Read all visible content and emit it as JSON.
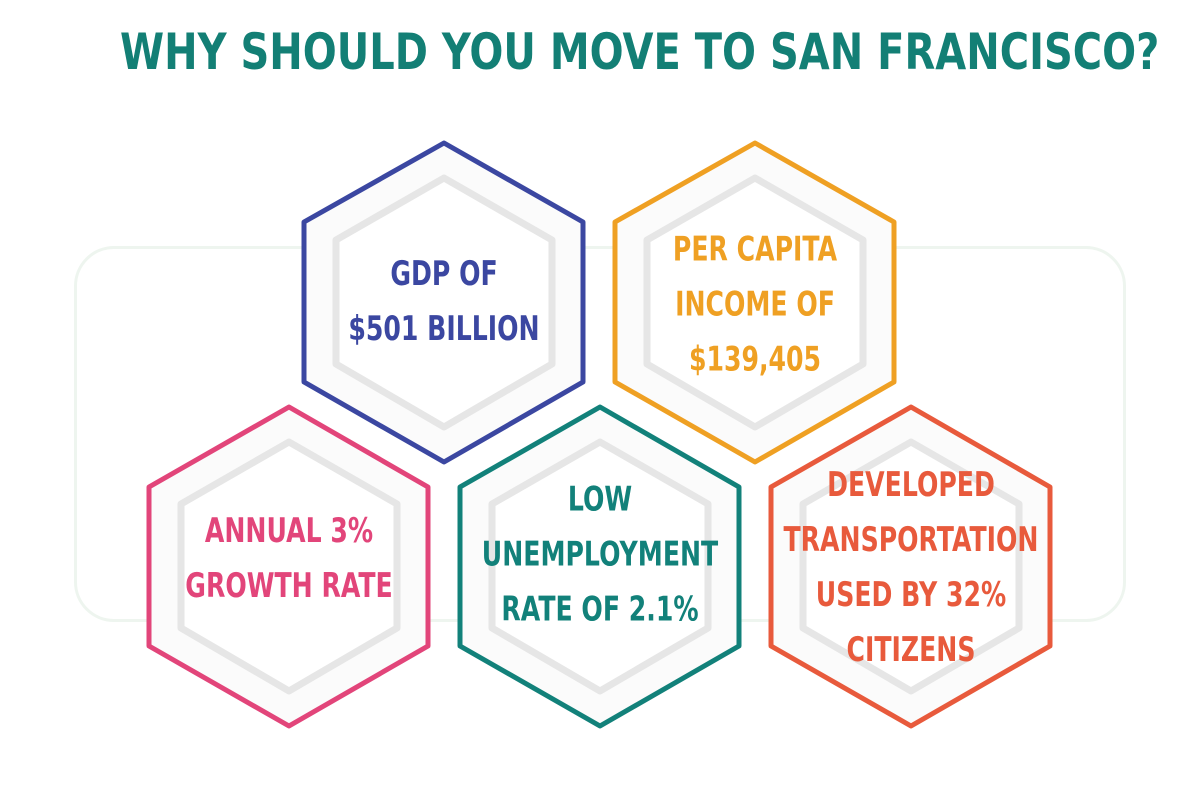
{
  "title": "WHY SHOULD YOU MOVE TO SAN FRANCISCO?",
  "colors": {
    "title": "#137f75",
    "hex_fill": "#fbfbfb",
    "hex_inner": "#ffffff",
    "hex_shadow": "#e6e6e6"
  },
  "hexagons": [
    {
      "id": "gdp",
      "color": "#3b47a1",
      "lines": [
        "GDP OF",
        "$501 BILLION"
      ]
    },
    {
      "id": "per-capita-income",
      "color": "#efa023",
      "lines": [
        "PER CAPITA",
        "INCOME OF",
        "$139,405"
      ]
    },
    {
      "id": "annual-growth",
      "color": "#e2457a",
      "lines": [
        "ANNUAL 3%",
        "GROWTH RATE"
      ]
    },
    {
      "id": "low-unemployment",
      "color": "#12817a",
      "lines": [
        "LOW",
        "UNEMPLOYMENT",
        "RATE OF 2.1%"
      ]
    },
    {
      "id": "developed-transportation",
      "color": "#e85a3c",
      "lines": [
        "DEVELOPED",
        "TRANSPORTATION",
        "USED BY 32%",
        "CITIZENS"
      ]
    }
  ]
}
